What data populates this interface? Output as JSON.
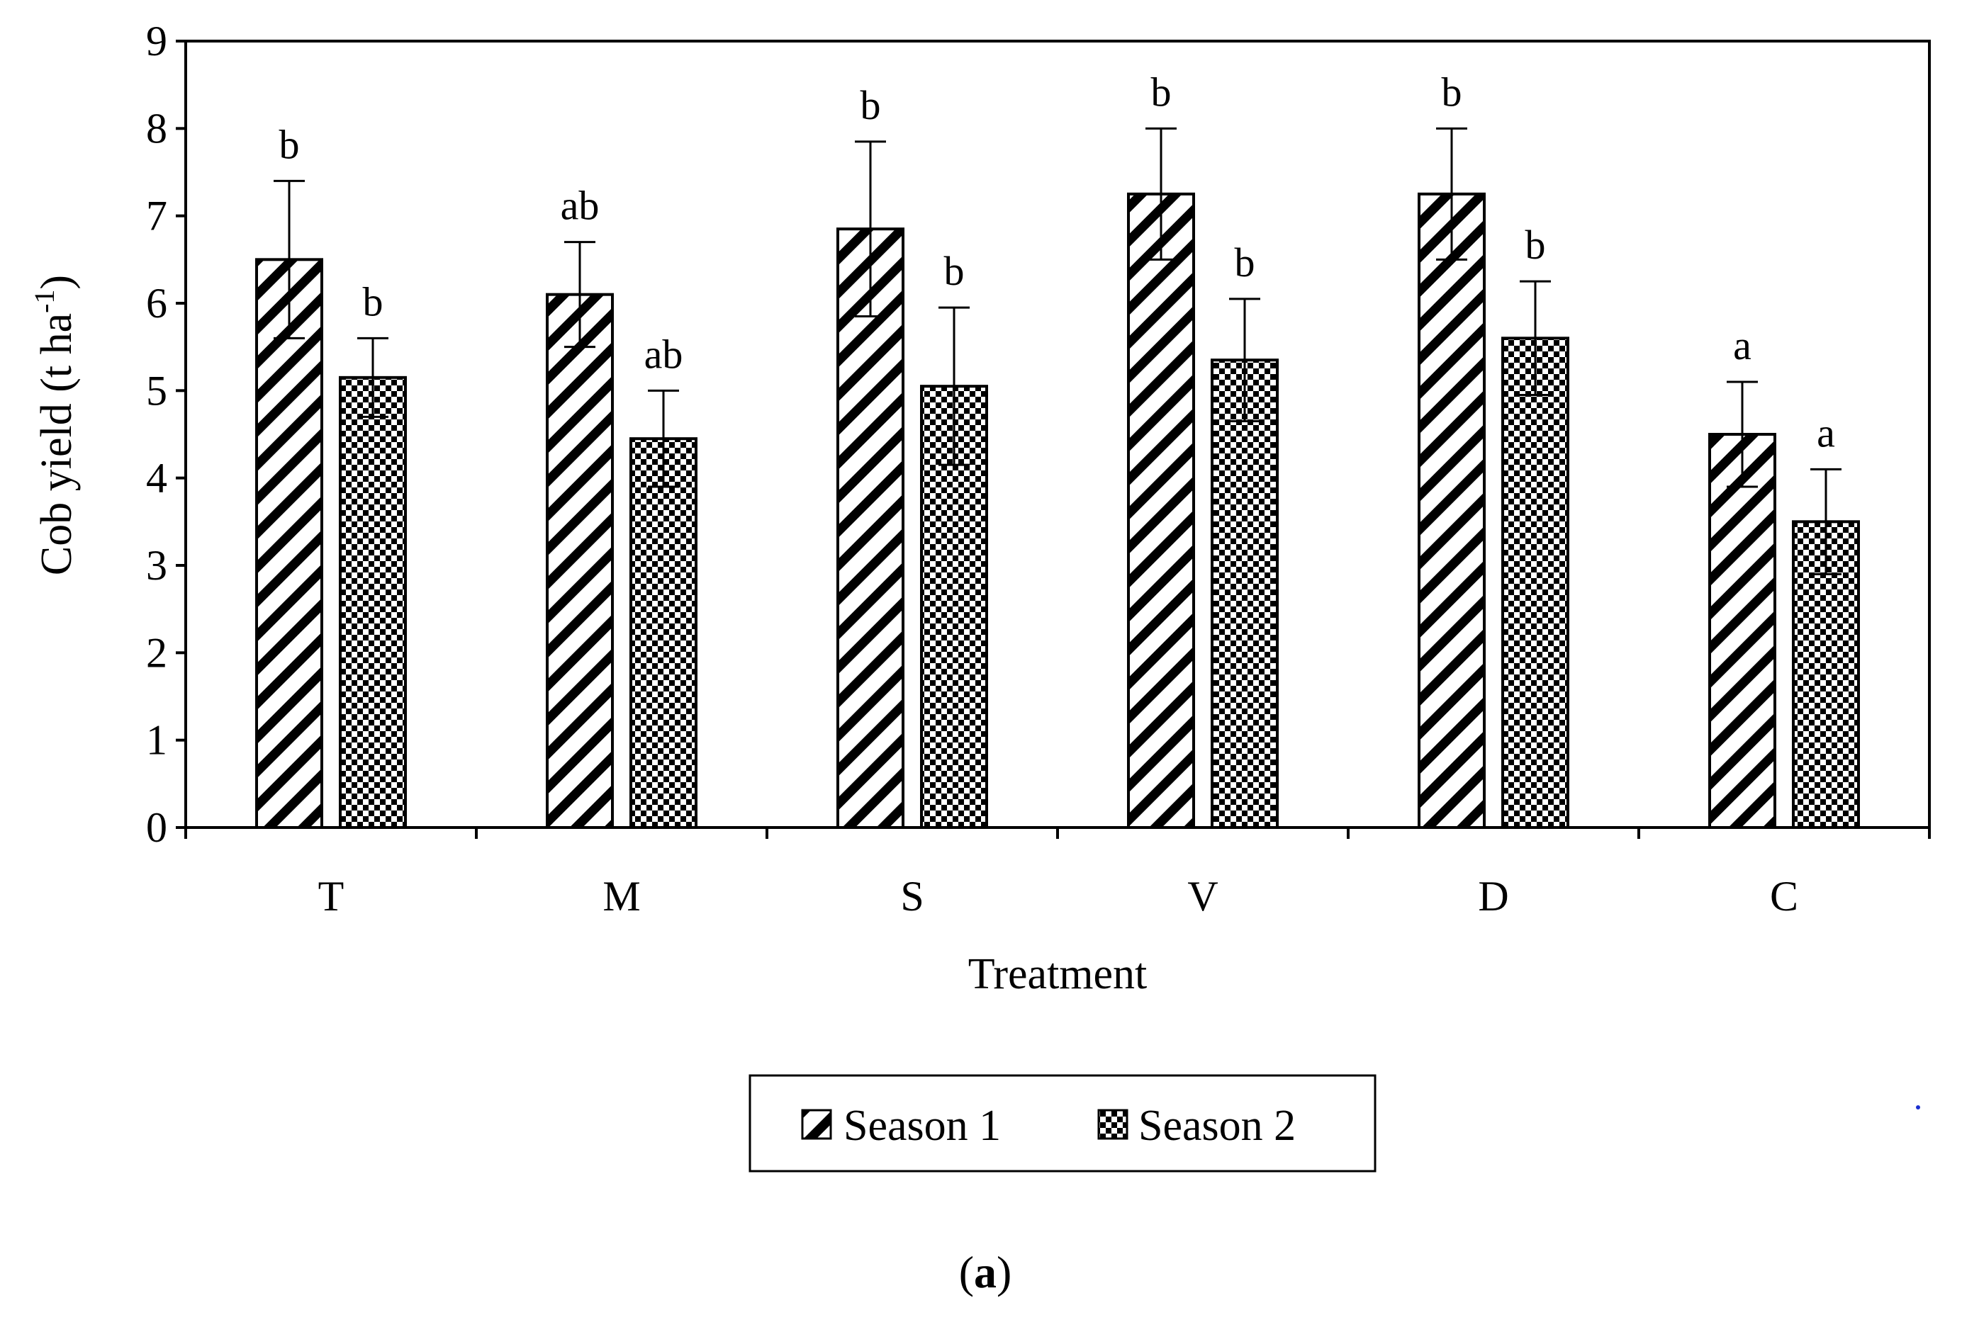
{
  "chart_data": {
    "type": "bar",
    "title": "",
    "xlabel": "Treatment",
    "ylabel": "Cob yield (t ha",
    "ylabel_sup": "-1",
    "ylabel_close": ")",
    "ylim": [
      0,
      9
    ],
    "yticks": [
      0,
      1,
      2,
      3,
      4,
      5,
      6,
      7,
      8,
      9
    ],
    "categories": [
      "T",
      "M",
      "S",
      "V",
      "D",
      "C"
    ],
    "series": [
      {
        "name": "Season 1",
        "pattern": "diagonal-hatch",
        "values": [
          6.5,
          6.1,
          6.85,
          7.25,
          7.25,
          4.5
        ],
        "errors": [
          0.9,
          0.6,
          1.0,
          0.75,
          0.75,
          0.6
        ],
        "letters": [
          "b",
          "ab",
          "b",
          "b",
          "b",
          "a"
        ]
      },
      {
        "name": "Season 2",
        "pattern": "checker",
        "values": [
          5.15,
          4.45,
          5.05,
          5.35,
          5.6,
          3.5
        ],
        "errors": [
          0.45,
          0.55,
          0.9,
          0.7,
          0.65,
          0.6
        ],
        "letters": [
          "b",
          "ab",
          "b",
          "b",
          "b",
          "a"
        ]
      }
    ],
    "legend_position": "bottom-center",
    "grid": false
  },
  "panel_label": {
    "open": "(",
    "letter": "a",
    "close": ")"
  }
}
